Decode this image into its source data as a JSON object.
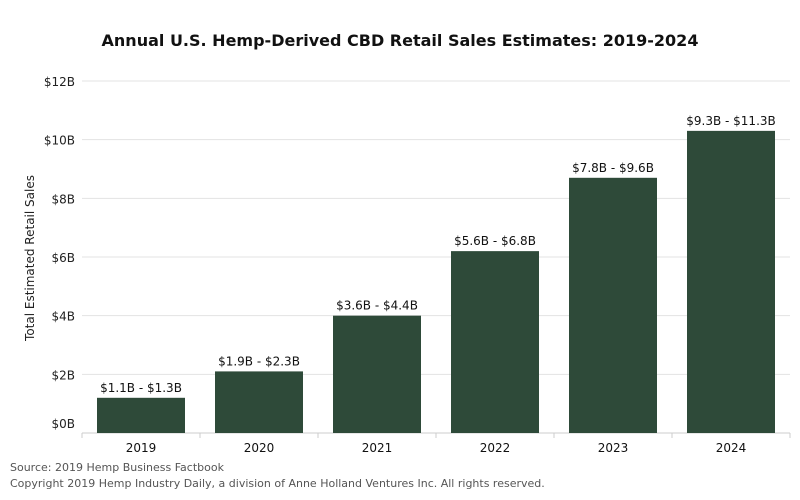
{
  "chart_data": {
    "type": "bar",
    "title": "Annual U.S. Hemp-Derived CBD Retail Sales Estimates: 2019-2024",
    "xlabel": "",
    "ylabel": "Total Estimated Retail Sales",
    "categories": [
      "2019",
      "2020",
      "2021",
      "2022",
      "2023",
      "2024"
    ],
    "values": [
      1.2,
      2.1,
      4.0,
      6.2,
      8.7,
      10.3
    ],
    "value_unit": "$B",
    "data_labels": [
      "$1.1B - $1.3B",
      "$1.9B - $2.3B",
      "$3.6B - $4.4B",
      "$5.6B - $6.8B",
      "$7.8B - $9.6B",
      "$9.3B - $11.3B"
    ],
    "ylim": [
      0,
      12
    ],
    "yticks": [
      0,
      2,
      4,
      6,
      8,
      10,
      12
    ],
    "ytick_labels": [
      "$0B",
      "$2B",
      "$4B",
      "$6B",
      "$8B",
      "$10B",
      "$12B"
    ],
    "grid": true,
    "legend": "none",
    "bar_color": "#2e4a39"
  },
  "footer": {
    "source": "Source: 2019 Hemp Business Factbook",
    "copyright": "Copyright 2019 Hemp Industry Daily, a division of Anne Holland Ventures Inc. All rights reserved."
  }
}
